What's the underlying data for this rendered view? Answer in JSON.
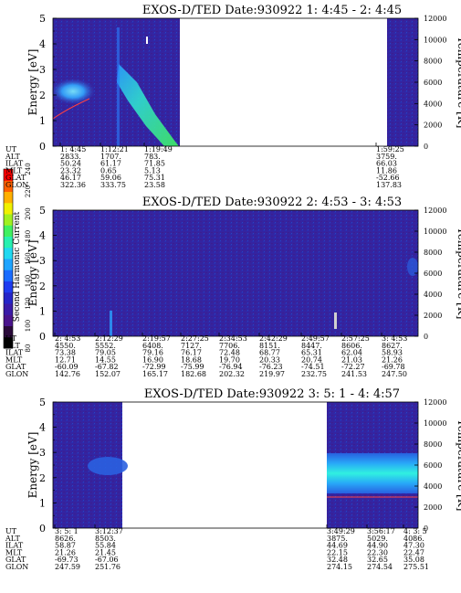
{
  "chart_data": [
    {
      "type": "heatmap",
      "title": "EXOS-D/TED   Date:930922  1: 4:45 - 2: 4:45",
      "ylabel": "Energy [eV]",
      "y2label": "Temperature [K]",
      "ylim": [
        0,
        5
      ],
      "y2lim": [
        0,
        12000
      ],
      "yticks": [
        "0",
        "1",
        "2",
        "3",
        "4",
        "5"
      ],
      "y2ticks": [
        "0",
        "2000",
        "4000",
        "6000",
        "8000",
        "10000",
        "12000"
      ],
      "row_labels": [
        "UT",
        "ALT",
        "ILAT",
        "MLT",
        "GLAT",
        "GLON"
      ],
      "columns": [
        {
          "UT": "1: 4:45",
          "ALT": "2833.",
          "ILAT": "50.24",
          "MLT": "23.32",
          "GLAT": "46.17",
          "GLON": "322.36"
        },
        {
          "UT": "1:12:21",
          "ALT": "1707.",
          "ILAT": "61.17",
          "MLT": "0.65",
          "GLAT": "59.06",
          "GLON": "333.75"
        },
        {
          "UT": "1:19:49",
          "ALT": "783.",
          "ILAT": "71.85",
          "MLT": "5.13",
          "GLAT": "75.31",
          "GLON": "23.58"
        },
        {
          "UT": "1:59:25",
          "ALT": "3759.",
          "ILAT": "66.03",
          "MLT": "11.86",
          "GLAT": "-52.66",
          "GLON": "137.83"
        }
      ]
    },
    {
      "type": "heatmap",
      "title": "EXOS-D/TED   Date:930922  2: 4:53 - 3: 4:53",
      "ylabel": "Energy [eV]",
      "y2label": "Temperature [K]",
      "ylim": [
        0,
        5
      ],
      "y2lim": [
        0,
        12000
      ],
      "yticks": [
        "0",
        "1",
        "2",
        "3",
        "4",
        "5"
      ],
      "y2ticks": [
        "0",
        "2000",
        "4000",
        "6000",
        "8000",
        "10000",
        "12000"
      ],
      "row_labels": [
        "UT",
        "ALT",
        "ILAT",
        "MLT",
        "GLAT",
        "GLON"
      ],
      "columns": [
        {
          "UT": "2: 4:53",
          "ALT": "4550.",
          "ILAT": "73.38",
          "MLT": "12.71",
          "GLAT": "-60.09",
          "GLON": "142.76"
        },
        {
          "UT": "2:12:29",
          "ALT": "5552.",
          "ILAT": "79.05",
          "MLT": "14.55",
          "GLAT": "-67.82",
          "GLON": "152.07"
        },
        {
          "UT": "2:19:57",
          "ALT": "6408.",
          "ILAT": "79.16",
          "MLT": "16.90",
          "GLAT": "-72.99",
          "GLON": "165.17"
        },
        {
          "UT": "2:27:25",
          "ALT": "7127.",
          "ILAT": "76.17",
          "MLT": "18.68",
          "GLAT": "-75.99",
          "GLON": "182.68"
        },
        {
          "UT": "2:34:53",
          "ALT": "7706.",
          "ILAT": "72.48",
          "MLT": "19.70",
          "GLAT": "-76.94",
          "GLON": "202.32"
        },
        {
          "UT": "2:42:29",
          "ALT": "8151.",
          "ILAT": "68.77",
          "MLT": "20.33",
          "GLAT": "-76.23",
          "GLON": "219.97"
        },
        {
          "UT": "2:49:57",
          "ALT": "8447.",
          "ILAT": "65.31",
          "MLT": "20.74",
          "GLAT": "-74.51",
          "GLON": "232.75"
        },
        {
          "UT": "2:57:25",
          "ALT": "8606.",
          "ILAT": "62.04",
          "MLT": "21.03",
          "GLAT": "-72.27",
          "GLON": "241.53"
        },
        {
          "UT": "3: 4:53",
          "ALT": "8627.",
          "ILAT": "58.93",
          "MLT": "21.26",
          "GLAT": "-69.78",
          "GLON": "247.50"
        }
      ]
    },
    {
      "type": "heatmap",
      "title": "EXOS-D/TED   Date:930922  3: 5: 1 - 4: 4:57",
      "ylabel": "Energy [eV]",
      "y2label": "Temperature [K]",
      "ylim": [
        0,
        5
      ],
      "y2lim": [
        0,
        12000
      ],
      "yticks": [
        "0",
        "1",
        "2",
        "3",
        "4",
        "5"
      ],
      "y2ticks": [
        "0",
        "2000",
        "4000",
        "6000",
        "8000",
        "10000",
        "12000"
      ],
      "row_labels": [
        "UT",
        "ALT",
        "ILAT",
        "MLT",
        "GLAT",
        "GLON"
      ],
      "columns": [
        {
          "UT": "3: 5: 1",
          "ALT": "8626.",
          "ILAT": "58.87",
          "MLT": "21.26",
          "GLAT": "-69.73",
          "GLON": "247.59"
        },
        {
          "UT": "3:12:37",
          "ALT": "8503.",
          "ILAT": "55.84",
          "MLT": "21.45",
          "GLAT": "-67.06",
          "GLON": "251.76"
        },
        {
          "UT": "3:49:29",
          "ALT": "3875.",
          "ILAT": "44.69",
          "MLT": "22.15",
          "GLAT": "32.48",
          "GLON": "274.15"
        },
        {
          "UT": "3:56:17",
          "ALT": "5029.",
          "ILAT": "44.90",
          "MLT": "22.30",
          "GLAT": "32.65",
          "GLON": "274.54"
        },
        {
          "UT": "4: 3: 5",
          "ALT": "4086.",
          "ILAT": "47.30",
          "MLT": "22.47",
          "GLAT": "35.08",
          "GLON": "275.51"
        }
      ]
    }
  ],
  "colorbar": {
    "label": "Second Harmonic Current",
    "ticks": [
      "80",
      "100",
      "120",
      "140",
      "160",
      "180",
      "200",
      "220",
      "240"
    ]
  },
  "colors": {
    "background_data": "#3a1fa0",
    "no_data": "#ffffff",
    "high": "#30e060"
  }
}
